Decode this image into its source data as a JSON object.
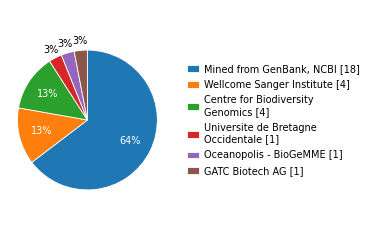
{
  "chart_data": {
    "type": "pie",
    "categories": [
      "Mined from GenBank, NCBI [18]",
      "Wellcome Sanger Institute [4]",
      "Centre for Biodiversity\nGenomics [4]",
      "Universite de Bretagne\nOccidentale [1]",
      "Oceanopolis - BioGeMME [1]",
      "GATC Biotech AG [1]"
    ],
    "values": [
      64,
      13,
      13,
      3,
      3,
      3
    ],
    "value_labels": [
      "64%",
      "13%",
      "13%",
      "3%",
      "3%",
      "3%"
    ],
    "legend": "right"
  }
}
